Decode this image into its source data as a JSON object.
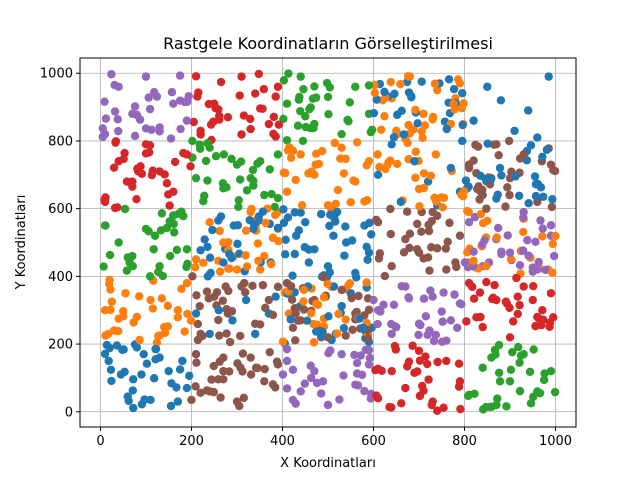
{
  "chart_data": {
    "type": "scatter",
    "title": "Rastgele Koordinatların Görselleştirilmesi",
    "xlabel": "X Koordinatları",
    "ylabel": "Y Koordinatları",
    "xlim": [
      -45,
      1045
    ],
    "ylim": [
      -45,
      1045
    ],
    "xticks": [
      0,
      200,
      400,
      600,
      800,
      1000
    ],
    "yticks": [
      0,
      200,
      400,
      600,
      800,
      1000
    ],
    "grid": true,
    "series": [
      {
        "color": "#1f77b4",
        "cells": [
          [
            0,
            0
          ],
          [
            1,
            2
          ],
          [
            2,
            1
          ],
          [
            2,
            2
          ],
          [
            3,
            4
          ],
          [
            4,
            3
          ],
          [
            4,
            5
          ]
        ],
        "points": [
          [
            20,
            188
          ],
          [
            45,
            110
          ],
          [
            60,
            45
          ],
          [
            80,
            190
          ],
          [
            110,
            35
          ],
          [
            130,
            160
          ],
          [
            150,
            120
          ],
          [
            170,
            30
          ],
          [
            180,
            150
          ],
          [
            190,
            70
          ],
          [
            240,
            230
          ],
          [
            260,
            300
          ],
          [
            290,
            270
          ],
          [
            320,
            330
          ],
          [
            340,
            230
          ],
          [
            370,
            290
          ],
          [
            385,
            340
          ],
          [
            210,
            290
          ],
          [
            430,
            520
          ],
          [
            450,
            560
          ],
          [
            470,
            480
          ],
          [
            500,
            430
          ],
          [
            520,
            590
          ],
          [
            540,
            500
          ],
          [
            560,
            410
          ],
          [
            580,
            550
          ],
          [
            590,
            470
          ],
          [
            610,
            700
          ],
          [
            640,
            790
          ],
          [
            660,
            620
          ],
          [
            690,
            740
          ],
          [
            720,
            680
          ],
          [
            740,
            610
          ],
          [
            770,
            720
          ],
          [
            790,
            650
          ],
          [
            820,
            860
          ],
          [
            850,
            960
          ],
          [
            880,
            920
          ],
          [
            910,
            830
          ],
          [
            940,
            890
          ],
          [
            960,
            810
          ],
          [
            985,
            990
          ]
        ]
      },
      {
        "color": "#ff7f0e",
        "cells": [
          [
            0,
            1
          ],
          [
            1,
            2
          ],
          [
            2,
            3
          ],
          [
            3,
            4
          ],
          [
            4,
            2
          ],
          [
            3,
            3
          ],
          [
            2,
            1
          ]
        ],
        "points": [
          [
            10,
            300
          ],
          [
            30,
            240
          ],
          [
            55,
            350
          ],
          [
            80,
            280
          ],
          [
            110,
            330
          ],
          [
            140,
            250
          ],
          [
            170,
            300
          ],
          [
            190,
            380
          ],
          [
            210,
            450
          ],
          [
            240,
            560
          ],
          [
            270,
            500
          ],
          [
            300,
            420
          ],
          [
            330,
            590
          ],
          [
            360,
            460
          ],
          [
            390,
            540
          ],
          [
            410,
            650
          ],
          [
            440,
            760
          ],
          [
            470,
            700
          ],
          [
            500,
            610
          ],
          [
            530,
            780
          ],
          [
            560,
            680
          ],
          [
            590,
            740
          ],
          [
            620,
            920
          ],
          [
            650,
            830
          ],
          [
            680,
            990
          ],
          [
            710,
            880
          ],
          [
            740,
            950
          ],
          [
            770,
            850
          ],
          [
            790,
            970
          ]
        ]
      },
      {
        "color": "#2ca02c",
        "cells": [
          [
            0,
            2
          ],
          [
            1,
            3
          ],
          [
            2,
            4
          ],
          [
            4,
            0
          ]
        ],
        "points": [
          [
            10,
            550
          ],
          [
            40,
            500
          ],
          [
            70,
            460
          ],
          [
            100,
            540
          ],
          [
            130,
            430
          ],
          [
            160,
            580
          ],
          [
            190,
            480
          ],
          [
            210,
            690
          ],
          [
            240,
            780
          ],
          [
            270,
            660
          ],
          [
            300,
            730
          ],
          [
            330,
            690
          ],
          [
            360,
            640
          ],
          [
            390,
            760
          ],
          [
            410,
            910
          ],
          [
            440,
            990
          ],
          [
            470,
            850
          ],
          [
            500,
            930
          ],
          [
            530,
            820
          ],
          [
            560,
            960
          ],
          [
            590,
            880
          ],
          [
            810,
            50
          ],
          [
            840,
            130
          ],
          [
            870,
            20
          ],
          [
            900,
            90
          ],
          [
            930,
            170
          ],
          [
            960,
            60
          ],
          [
            990,
            120
          ]
        ]
      },
      {
        "color": "#d62728",
        "cells": [
          [
            0,
            3
          ],
          [
            1,
            4
          ],
          [
            3,
            0
          ],
          [
            4,
            1
          ]
        ],
        "points": [
          [
            10,
            620
          ],
          [
            40,
            740
          ],
          [
            70,
            680
          ],
          [
            100,
            790
          ],
          [
            130,
            710
          ],
          [
            160,
            650
          ],
          [
            190,
            760
          ],
          [
            220,
            830
          ],
          [
            250,
            910
          ],
          [
            280,
            870
          ],
          [
            310,
            990
          ],
          [
            340,
            940
          ],
          [
            370,
            850
          ],
          [
            390,
            960
          ],
          [
            610,
            40
          ],
          [
            640,
            120
          ],
          [
            670,
            70
          ],
          [
            700,
            180
          ],
          [
            730,
            30
          ],
          [
            760,
            150
          ],
          [
            790,
            90
          ],
          [
            810,
            380
          ],
          [
            840,
            250
          ],
          [
            870,
            330
          ],
          [
            900,
            220
          ],
          [
            930,
            370
          ],
          [
            960,
            280
          ],
          [
            990,
            350
          ]
        ]
      },
      {
        "color": "#9467bd",
        "cells": [
          [
            0,
            4
          ],
          [
            2,
            0
          ],
          [
            3,
            1
          ],
          [
            4,
            2
          ]
        ],
        "points": [
          [
            10,
            820
          ],
          [
            40,
            960
          ],
          [
            70,
            880
          ],
          [
            100,
            990
          ],
          [
            130,
            840
          ],
          [
            160,
            910
          ],
          [
            190,
            860
          ],
          [
            410,
            150
          ],
          [
            440,
            60
          ],
          [
            470,
            120
          ],
          [
            500,
            20
          ],
          [
            530,
            170
          ],
          [
            560,
            80
          ],
          [
            590,
            140
          ],
          [
            610,
            300
          ],
          [
            640,
            230
          ],
          [
            670,
            370
          ],
          [
            700,
            260
          ],
          [
            730,
            340
          ],
          [
            760,
            210
          ],
          [
            790,
            320
          ],
          [
            810,
            560
          ],
          [
            840,
            430
          ],
          [
            870,
            510
          ],
          [
            900,
            470
          ],
          [
            930,
            590
          ],
          [
            960,
            420
          ],
          [
            990,
            520
          ]
        ]
      },
      {
        "color": "#8c564b",
        "cells": [
          [
            1,
            0
          ],
          [
            1,
            1
          ],
          [
            2,
            1
          ],
          [
            3,
            2
          ],
          [
            4,
            3
          ]
        ],
        "points": [
          [
            210,
            170
          ],
          [
            240,
            60
          ],
          [
            270,
            120
          ],
          [
            300,
            30
          ],
          [
            330,
            160
          ],
          [
            360,
            90
          ],
          [
            390,
            140
          ],
          [
            220,
            230
          ],
          [
            250,
            340
          ],
          [
            280,
            290
          ],
          [
            310,
            370
          ],
          [
            340,
            260
          ],
          [
            370,
            330
          ],
          [
            410,
            380
          ],
          [
            440,
            270
          ],
          [
            470,
            330
          ],
          [
            500,
            220
          ],
          [
            530,
            360
          ],
          [
            560,
            290
          ],
          [
            590,
            250
          ],
          [
            610,
            560
          ],
          [
            640,
            430
          ],
          [
            670,
            510
          ],
          [
            700,
            470
          ],
          [
            730,
            590
          ],
          [
            760,
            420
          ],
          [
            790,
            520
          ],
          [
            810,
            730
          ],
          [
            840,
            640
          ],
          [
            870,
            790
          ],
          [
            900,
            690
          ],
          [
            930,
            760
          ],
          [
            960,
            620
          ],
          [
            990,
            730
          ]
        ]
      }
    ]
  }
}
